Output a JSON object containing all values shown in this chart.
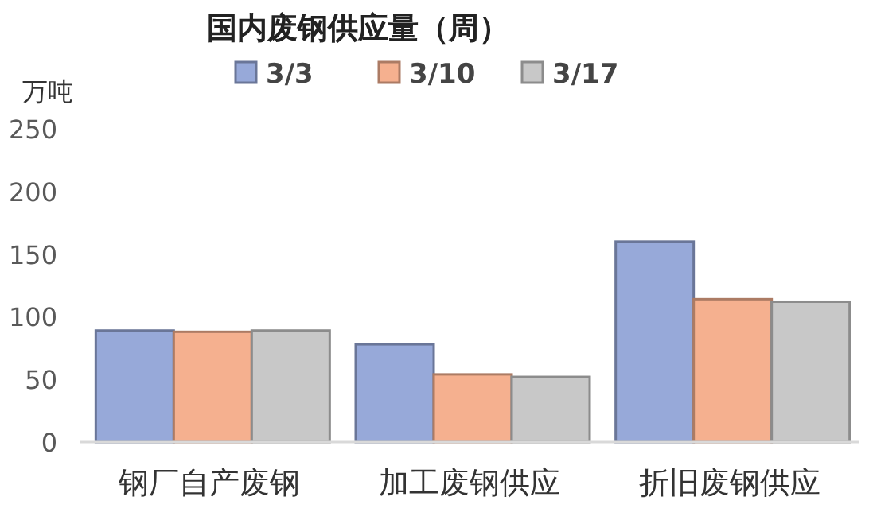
{
  "chart_data": {
    "type": "bar",
    "title": "国内废钢供应量（周）",
    "ylabel": "万吨",
    "categories": [
      "钢厂自产废钢",
      "加工废钢供应",
      "折旧废钢供应"
    ],
    "series": [
      {
        "name": "3/3",
        "color": "#97a9d9",
        "values": [
          89,
          78,
          160
        ]
      },
      {
        "name": "3/10",
        "color": "#f5b08f",
        "values": [
          88,
          54,
          114
        ]
      },
      {
        "name": "3/17",
        "color": "#c8c8c8",
        "values": [
          89,
          52,
          112
        ]
      }
    ],
    "ylim": [
      0,
      250
    ],
    "yticks": [
      0,
      50,
      100,
      150,
      200,
      250
    ],
    "grid": false,
    "legend": "top"
  }
}
